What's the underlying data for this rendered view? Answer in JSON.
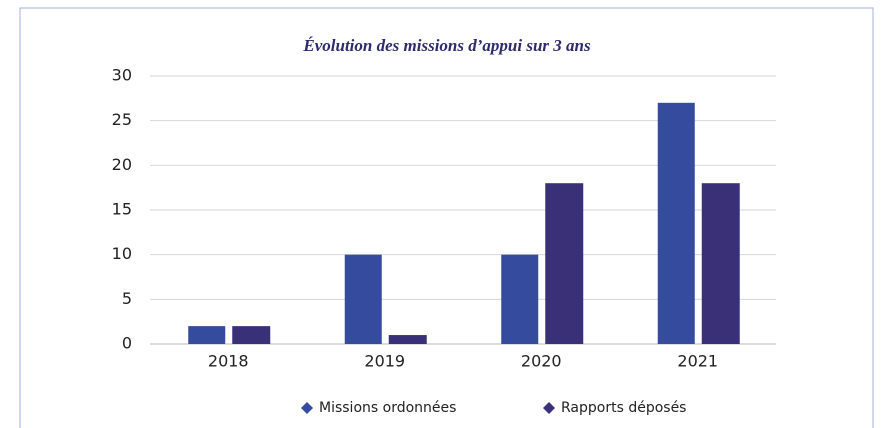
{
  "chart_data": {
    "type": "bar",
    "title": "Évolution des missions d’appui sur 3 ans",
    "categories": [
      "2018",
      "2019",
      "2020",
      "2021"
    ],
    "series": [
      {
        "name": "Missions ordonnées",
        "color": "#344b9e",
        "values": [
          2,
          10,
          10,
          27
        ]
      },
      {
        "name": "Rapports déposés",
        "color": "#3a3078",
        "values": [
          2,
          1,
          18,
          18
        ]
      }
    ],
    "ylim": [
      0,
      30
    ],
    "yticks": [
      0,
      5,
      10,
      15,
      20,
      25,
      30
    ],
    "grid": true,
    "legend": "bottom"
  }
}
